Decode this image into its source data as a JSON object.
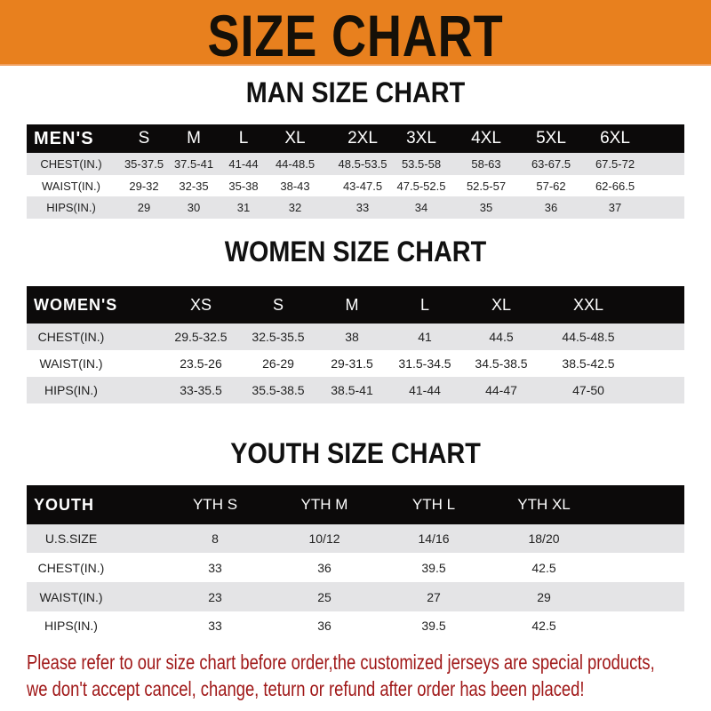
{
  "banner": {
    "title": "SIZE CHART",
    "color": "#e8801e"
  },
  "men": {
    "title": "MAN SIZE CHART",
    "header": [
      "MEN'S",
      "S",
      "M",
      "L",
      "XL",
      "2XL",
      "3XL",
      "4XL",
      "5XL",
      "6XL"
    ],
    "rows": [
      [
        "CHEST(IN.)",
        "35-37.5",
        "37.5-41",
        "41-44",
        "44-48.5",
        "48.5-53.5",
        "53.5-58",
        "58-63",
        "63-67.5",
        "67.5-72"
      ],
      [
        "WAIST(IN.)",
        "29-32",
        "32-35",
        "35-38",
        "38-43",
        "43-47.5",
        "47.5-52.5",
        "52.5-57",
        "57-62",
        "62-66.5"
      ],
      [
        "HIPS(IN.)",
        "29",
        "30",
        "31",
        "32",
        "33",
        "34",
        "35",
        "36",
        "37"
      ]
    ]
  },
  "women": {
    "title": "WOMEN SIZE CHART",
    "header": [
      "WOMEN'S",
      "XS",
      "S",
      "M",
      "L",
      "XL",
      "XXL"
    ],
    "rows": [
      [
        "CHEST(IN.)",
        "29.5-32.5",
        "32.5-35.5",
        "38",
        "41",
        "44.5",
        "44.5-48.5"
      ],
      [
        "WAIST(IN.)",
        "23.5-26",
        "26-29",
        "29-31.5",
        "31.5-34.5",
        "34.5-38.5",
        "38.5-42.5"
      ],
      [
        "HIPS(IN.)",
        "33-35.5",
        "35.5-38.5",
        "38.5-41",
        "41-44",
        "44-47",
        "47-50"
      ]
    ]
  },
  "youth": {
    "title": "YOUTH SIZE CHART",
    "header": [
      "YOUTH",
      "YTH S",
      "YTH M",
      "YTH L",
      "YTH XL"
    ],
    "rows": [
      [
        "U.S.SIZE",
        "8",
        "10/12",
        "14/16",
        "18/20"
      ],
      [
        "CHEST(IN.)",
        "33",
        "36",
        "39.5",
        "42.5"
      ],
      [
        "WAIST(IN.)",
        "23",
        "25",
        "27",
        "29"
      ],
      [
        "HIPS(IN.)",
        "33",
        "36",
        "39.5",
        "42.5"
      ]
    ]
  },
  "footer": {
    "line1": "Please refer to our size chart before order,the customized jerseys are special products,",
    "line2": "we don't accept cancel, change, teturn or refund after order has been placed!",
    "color": "#a01818"
  }
}
